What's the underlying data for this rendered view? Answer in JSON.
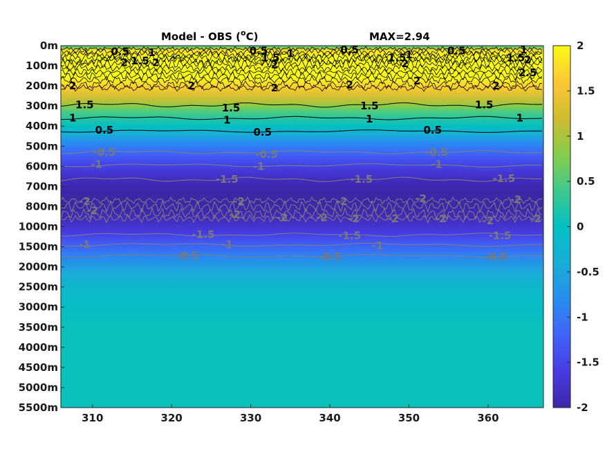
{
  "chart_data": {
    "type": "heatmap",
    "title": "Model - OBS (",
    "title_sup": "o",
    "title_unit": "C)",
    "max_label": "MAX=2.94",
    "x_ticks": [
      "310",
      "320",
      "330",
      "340",
      "350",
      "360"
    ],
    "x_tick_values": [
      310,
      320,
      330,
      340,
      350,
      360
    ],
    "xlim": [
      306,
      367
    ],
    "y_ticks": [
      "0m",
      "100m",
      "200m",
      "300m",
      "400m",
      "500m",
      "600m",
      "700m",
      "800m",
      "1000m",
      "1500m",
      "2000m",
      "2500m",
      "3000m",
      "3500m",
      "4000m",
      "4500m",
      "5000m",
      "5500m"
    ],
    "colorbar_ticks": [
      "2",
      "1.5",
      "1",
      "0.5",
      "0",
      "-0.5",
      "-1",
      "-1.5",
      "-2"
    ],
    "colorbar_values": [
      2,
      1.5,
      1,
      0.5,
      0,
      -0.5,
      -1,
      -1.5,
      -2
    ],
    "clim": [
      -2,
      2
    ],
    "colormap": "parula",
    "depth_profile": {
      "y_index": [
        0,
        0.1,
        0.25,
        0.5,
        0.8,
        1,
        1.3,
        1.6,
        2,
        2.4,
        2.8,
        3,
        3.3,
        3.6,
        4,
        4.4,
        4.8,
        5.3,
        5.8,
        6.3,
        6.8,
        7.3,
        7.8,
        8.3,
        8.8,
        9.3,
        9.8,
        10.3,
        10.8,
        11.3,
        12,
        13,
        14,
        15,
        18
      ],
      "values": [
        0.2,
        0.9,
        1.8,
        2,
        2,
        2,
        2,
        2,
        1.7,
        1.35,
        1.05,
        0.8,
        0.45,
        0.25,
        0,
        -0.4,
        -0.8,
        -1.15,
        -1.45,
        -1.7,
        -1.9,
        -2,
        -2,
        -1.95,
        -1.8,
        -1.6,
        -1.3,
        -1.0,
        -0.7,
        -0.45,
        -0.2,
        -0.05,
        0.05,
        0.05,
        0.05
      ]
    },
    "black_contour_labels": [
      {
        "text": "0.5",
        "lon": 313.5,
        "y": 0.3
      },
      {
        "text": "1",
        "lon": 317.5,
        "y": 0.35
      },
      {
        "text": "1.5",
        "lon": 316,
        "y": 0.75
      },
      {
        "text": "2",
        "lon": 314,
        "y": 0.85
      },
      {
        "text": "2",
        "lon": 318,
        "y": 0.85
      },
      {
        "text": "0.5",
        "lon": 331,
        "y": 0.25
      },
      {
        "text": "1.5",
        "lon": 332.5,
        "y": 0.6
      },
      {
        "text": "1",
        "lon": 335,
        "y": 0.4
      },
      {
        "text": "2",
        "lon": 333,
        "y": 0.95
      },
      {
        "text": "0.5",
        "lon": 342.5,
        "y": 0.2
      },
      {
        "text": "1.5",
        "lon": 348.5,
        "y": 0.6
      },
      {
        "text": "1",
        "lon": 350,
        "y": 0.45
      },
      {
        "text": "2",
        "lon": 349.5,
        "y": 0.9
      },
      {
        "text": "0.5",
        "lon": 356,
        "y": 0.25
      },
      {
        "text": "1.5",
        "lon": 363.5,
        "y": 0.6
      },
      {
        "text": "2",
        "lon": 365,
        "y": 0.7
      },
      {
        "text": "2.5",
        "lon": 365,
        "y": 1.35
      },
      {
        "text": "1",
        "lon": 364.5,
        "y": 0.2
      },
      {
        "text": "2",
        "lon": 307.5,
        "y": 2
      },
      {
        "text": "2",
        "lon": 322.5,
        "y": 2
      },
      {
        "text": "2",
        "lon": 333,
        "y": 2.1
      },
      {
        "text": "2",
        "lon": 342.5,
        "y": 1.95
      },
      {
        "text": "2",
        "lon": 351,
        "y": 1.75
      },
      {
        "text": "2",
        "lon": 361,
        "y": 2
      },
      {
        "text": "1.5",
        "lon": 309,
        "y": 2.95
      },
      {
        "text": "1.5",
        "lon": 327.5,
        "y": 3.1
      },
      {
        "text": "1.5",
        "lon": 345,
        "y": 3
      },
      {
        "text": "1.5",
        "lon": 359.5,
        "y": 2.95
      },
      {
        "text": "1",
        "lon": 307.5,
        "y": 3.6
      },
      {
        "text": "1",
        "lon": 327,
        "y": 3.7
      },
      {
        "text": "1",
        "lon": 345,
        "y": 3.65
      },
      {
        "text": "1",
        "lon": 364,
        "y": 3.6
      },
      {
        "text": "0.5",
        "lon": 311.5,
        "y": 4.2
      },
      {
        "text": "0.5",
        "lon": 331.5,
        "y": 4.3
      },
      {
        "text": "0.5",
        "lon": 353,
        "y": 4.2
      }
    ],
    "gray_contour_labels": [
      {
        "text": "-0.5",
        "lon": 311.5,
        "y": 5.3
      },
      {
        "text": "-0.5",
        "lon": 332,
        "y": 5.4
      },
      {
        "text": "-0.5",
        "lon": 353.5,
        "y": 5.3
      },
      {
        "text": "-1",
        "lon": 310.5,
        "y": 5.9
      },
      {
        "text": "-1",
        "lon": 331,
        "y": 6
      },
      {
        "text": "-1",
        "lon": 353.5,
        "y": 5.9
      },
      {
        "text": "-1.5",
        "lon": 327,
        "y": 6.65
      },
      {
        "text": "-1.5",
        "lon": 344,
        "y": 6.65
      },
      {
        "text": "-1.5",
        "lon": 362,
        "y": 6.6
      },
      {
        "text": "-2",
        "lon": 309,
        "y": 7.75
      },
      {
        "text": "-2",
        "lon": 328.5,
        "y": 7.75
      },
      {
        "text": "-2",
        "lon": 341.5,
        "y": 7.75
      },
      {
        "text": "-2",
        "lon": 351.5,
        "y": 7.6
      },
      {
        "text": "-2",
        "lon": 363.5,
        "y": 7.65
      },
      {
        "text": "-2",
        "lon": 310,
        "y": 8.2
      },
      {
        "text": "-2",
        "lon": 328,
        "y": 8.4
      },
      {
        "text": "-2",
        "lon": 334,
        "y": 8.55
      },
      {
        "text": "-2",
        "lon": 339,
        "y": 8.55
      },
      {
        "text": "-2",
        "lon": 343,
        "y": 8.6
      },
      {
        "text": "-2",
        "lon": 348,
        "y": 8.6
      },
      {
        "text": "-2",
        "lon": 354,
        "y": 8.6
      },
      {
        "text": "-2",
        "lon": 360,
        "y": 8.7
      },
      {
        "text": "-2",
        "lon": 366,
        "y": 8.6
      },
      {
        "text": "-1.5",
        "lon": 324,
        "y": 9.4
      },
      {
        "text": "-1.5",
        "lon": 342.5,
        "y": 9.45
      },
      {
        "text": "-1.5",
        "lon": 361.5,
        "y": 9.45
      },
      {
        "text": "-1",
        "lon": 309,
        "y": 9.9
      },
      {
        "text": "-1",
        "lon": 327,
        "y": 9.9
      },
      {
        "text": "-1",
        "lon": 346,
        "y": 9.95
      },
      {
        "text": "-0.5",
        "lon": 322,
        "y": 10.45
      },
      {
        "text": "-0.5",
        "lon": 340,
        "y": 10.5
      },
      {
        "text": "-0.5",
        "lon": 361,
        "y": 10.5
      }
    ]
  }
}
